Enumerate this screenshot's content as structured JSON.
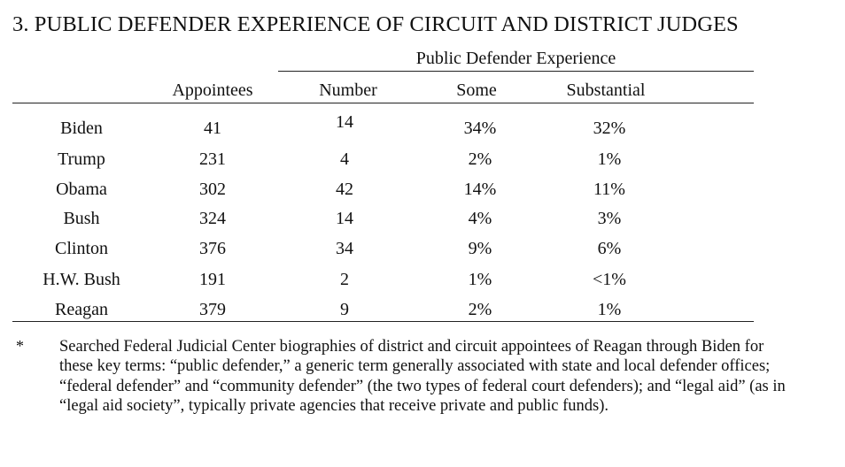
{
  "title": "3.  PUBLIC DEFENDER EXPERIENCE OF CIRCUIT AND DISTRICT JUDGES",
  "table": {
    "group_header": "Public Defender Experience",
    "columns": [
      "",
      "Appointees",
      "Number",
      "Some",
      "Substantial"
    ],
    "rows": [
      {
        "president": "Biden",
        "appointees": "41",
        "number": "14",
        "some": "34%",
        "substantial": "32%"
      },
      {
        "president": "Trump",
        "appointees": "231",
        "number": "4",
        "some": "2%",
        "substantial": "1%"
      },
      {
        "president": "Obama",
        "appointees": "302",
        "number": "42",
        "some": "14%",
        "substantial": "11%"
      },
      {
        "president": "Bush",
        "appointees": "324",
        "number": "14",
        "some": "4%",
        "substantial": "3%"
      },
      {
        "president": "Clinton",
        "appointees": "376",
        "number": "34",
        "some": "9%",
        "substantial": "6%"
      },
      {
        "president": "H.W. Bush",
        "appointees": "191",
        "number": "2",
        "some": "1%",
        "substantial": "<1%"
      },
      {
        "president": "Reagan",
        "appointees": "379",
        "number": "9",
        "some": "2%",
        "substantial": "1%"
      }
    ]
  },
  "footnote": {
    "marker": "*",
    "text": "Searched Federal Judicial Center biographies of district and circuit appointees of Reagan through Biden for these key terms: “public defender,” a generic term generally associated with state and local defender offices; “federal defender” and “community defender” (the two types of federal court defenders); and “legal aid” (as in “legal aid society”, typically private agencies that receive private and public funds)."
  }
}
